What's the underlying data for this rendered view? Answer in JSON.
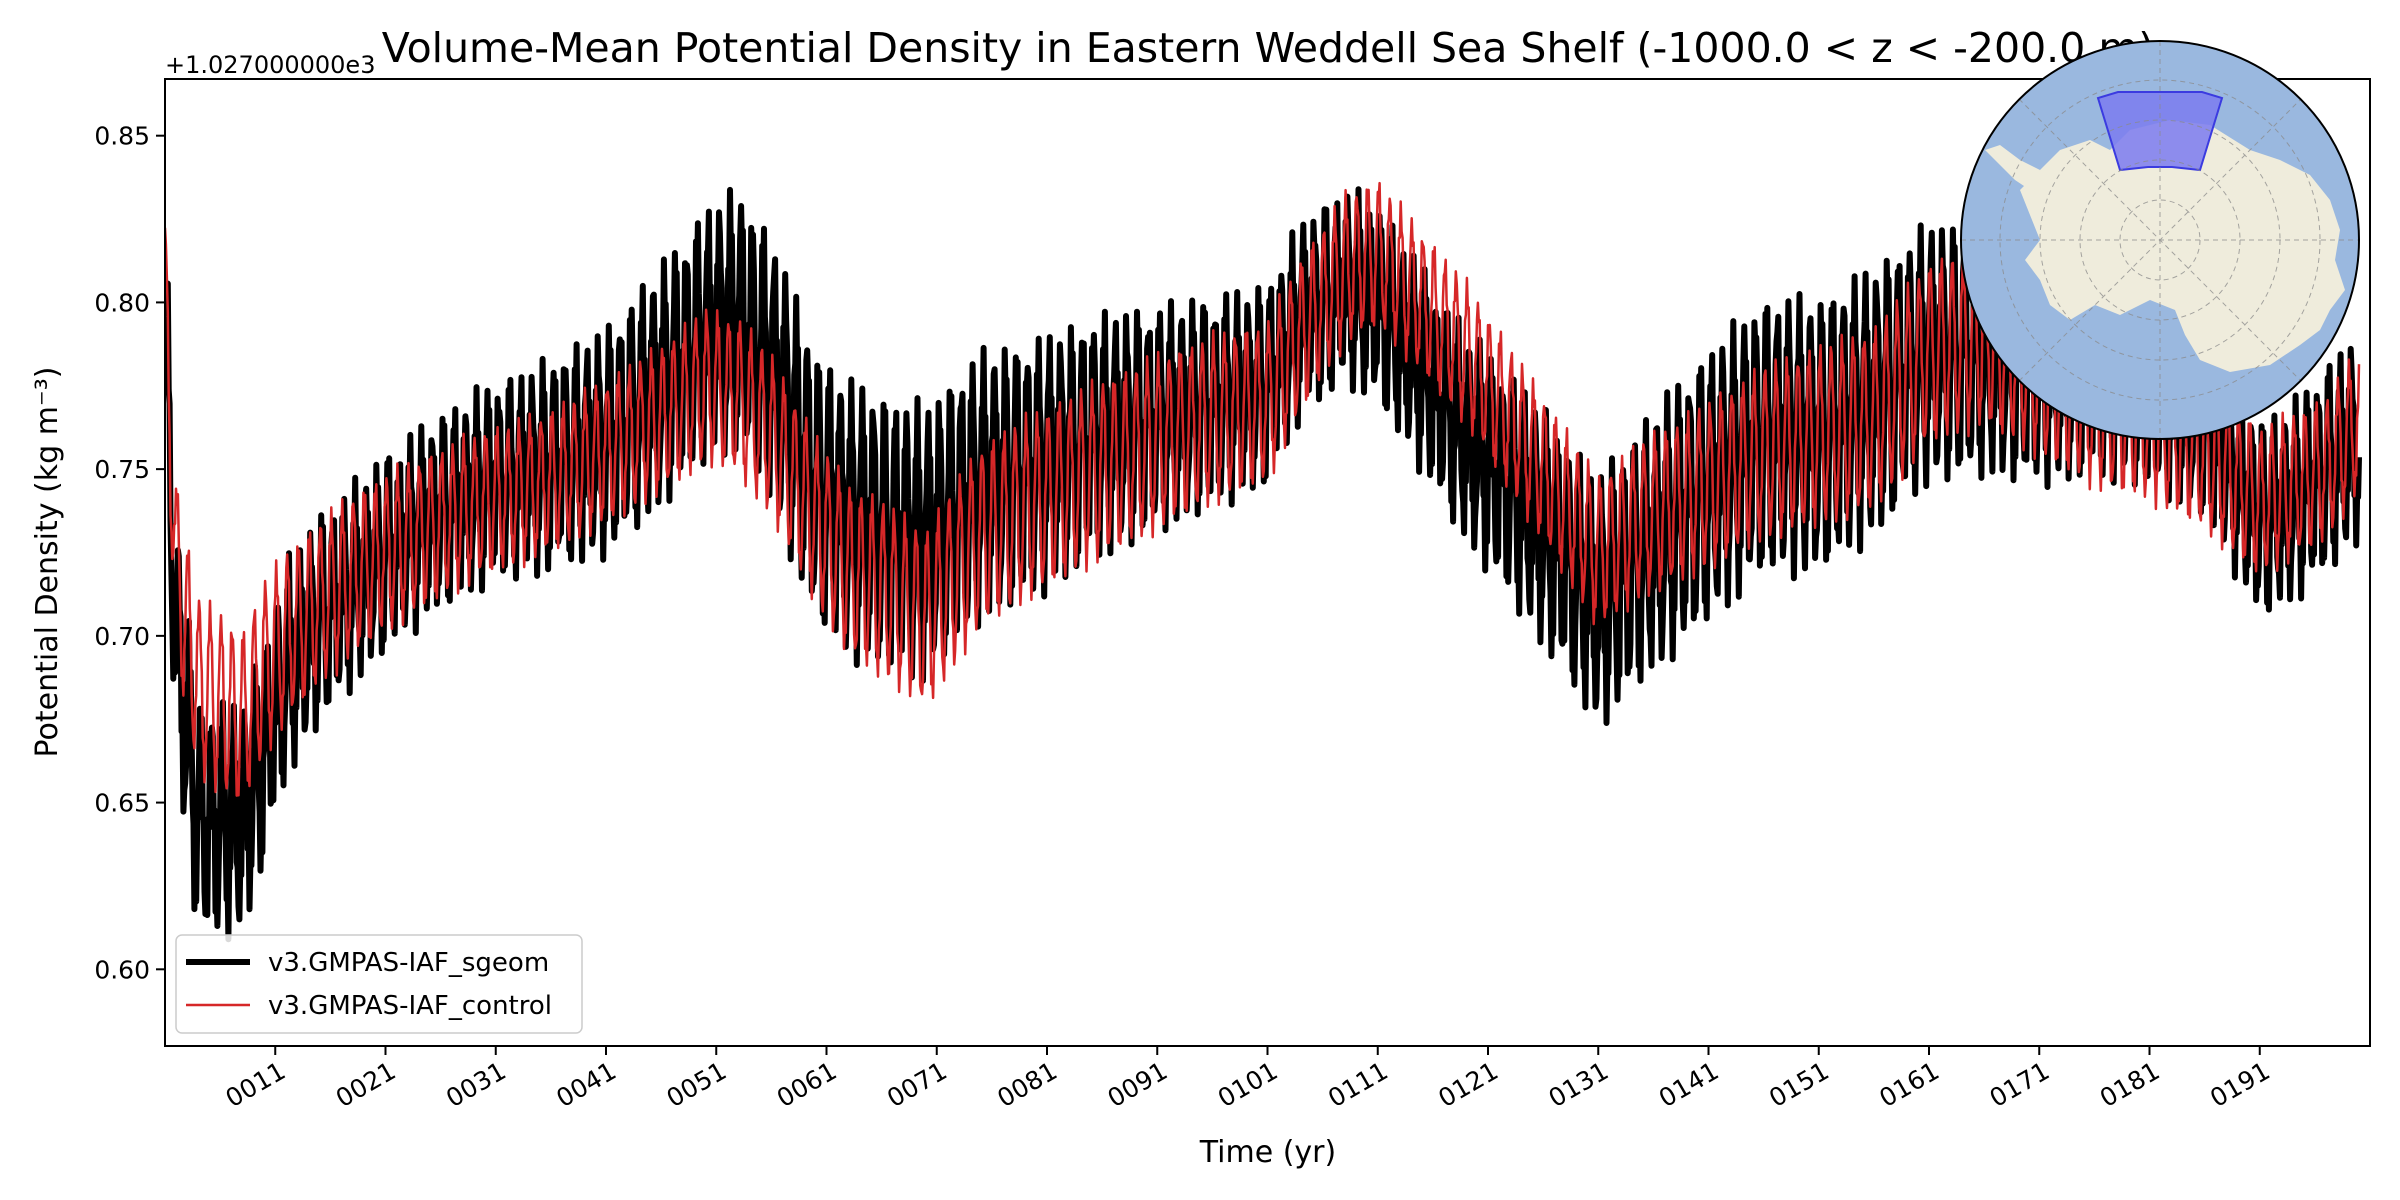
{
  "chart_data": {
    "type": "line",
    "title": "Volume-Mean Potential Density in Eastern Weddell Sea Shelf (-1000.0 < z < -200.0 m)",
    "xlabel": "Time (yr)",
    "ylabel": "Potential Density (kg m⁻³)",
    "y_offset_label": "+1.027000000e3",
    "xlim": [
      1,
      201
    ],
    "ylim": [
      0.577,
      0.867
    ],
    "yticks": [
      0.6,
      0.65,
      0.7,
      0.75,
      0.8,
      0.85
    ],
    "ytick_labels": [
      "0.60",
      "0.65",
      "0.70",
      "0.75",
      "0.80",
      "0.85"
    ],
    "xticks": [
      11,
      21,
      31,
      41,
      51,
      61,
      71,
      81,
      91,
      101,
      111,
      121,
      131,
      141,
      151,
      161,
      171,
      181,
      191
    ],
    "xtick_labels": [
      "0011",
      "0021",
      "0031",
      "0041",
      "0051",
      "0061",
      "0071",
      "0081",
      "0091",
      "0101",
      "0111",
      "0121",
      "0131",
      "0141",
      "0151",
      "0161",
      "0171",
      "0181",
      "0191"
    ],
    "grid": false,
    "legend_position": "lower-left",
    "series": [
      {
        "name": "v3.GMPAS-IAF_sgeom",
        "color": "#000000",
        "style": "thick",
        "trend_x": [
          1,
          2,
          4,
          6,
          8,
          10,
          12,
          15,
          18,
          21,
          25,
          30,
          35,
          41,
          46,
          50,
          53,
          56,
          60,
          63,
          67,
          70,
          75,
          80,
          86,
          91,
          96,
          101,
          104,
          108,
          111,
          115,
          119,
          123,
          127,
          131,
          135,
          141,
          146,
          151,
          156,
          161,
          166,
          171,
          176,
          181,
          186,
          191,
          194,
          197,
          200
        ],
        "trend_y": [
          0.79,
          0.7,
          0.645,
          0.645,
          0.645,
          0.665,
          0.69,
          0.705,
          0.715,
          0.725,
          0.735,
          0.745,
          0.75,
          0.758,
          0.775,
          0.79,
          0.795,
          0.78,
          0.745,
          0.735,
          0.73,
          0.728,
          0.745,
          0.75,
          0.76,
          0.765,
          0.77,
          0.775,
          0.795,
          0.805,
          0.8,
          0.78,
          0.76,
          0.745,
          0.728,
          0.71,
          0.725,
          0.745,
          0.76,
          0.76,
          0.77,
          0.785,
          0.785,
          0.78,
          0.78,
          0.775,
          0.765,
          0.735,
          0.74,
          0.75,
          0.76
        ],
        "amplitude": 0.028
      },
      {
        "name": "v3.GMPAS-IAF_control",
        "color": "#d62728",
        "style": "thin",
        "trend_x": [
          1,
          2,
          4,
          6,
          8,
          10,
          12,
          15,
          18,
          21,
          25,
          30,
          35,
          41,
          46,
          50,
          53,
          56,
          60,
          63,
          67,
          70,
          75,
          80,
          86,
          91,
          96,
          101,
          104,
          108,
          111,
          115,
          119,
          123,
          127,
          131,
          135,
          141,
          146,
          151,
          156,
          161,
          166,
          171,
          176,
          181,
          186,
          191,
          194,
          197,
          200
        ],
        "trend_y": [
          0.8,
          0.72,
          0.685,
          0.68,
          0.675,
          0.69,
          0.7,
          0.71,
          0.718,
          0.725,
          0.732,
          0.74,
          0.745,
          0.755,
          0.765,
          0.775,
          0.772,
          0.76,
          0.735,
          0.72,
          0.712,
          0.705,
          0.73,
          0.74,
          0.75,
          0.758,
          0.765,
          0.77,
          0.79,
          0.81,
          0.815,
          0.8,
          0.785,
          0.765,
          0.745,
          0.725,
          0.735,
          0.745,
          0.755,
          0.76,
          0.765,
          0.785,
          0.79,
          0.78,
          0.77,
          0.765,
          0.755,
          0.74,
          0.745,
          0.75,
          0.765
        ],
        "amplitude": 0.022
      }
    ],
    "inset_map": {
      "projection": "south-polar-stereographic",
      "ocean_color": "#9ab8df",
      "land_color": "#efecdc",
      "region_color": "#7b7bf0",
      "region_label": ""
    }
  }
}
